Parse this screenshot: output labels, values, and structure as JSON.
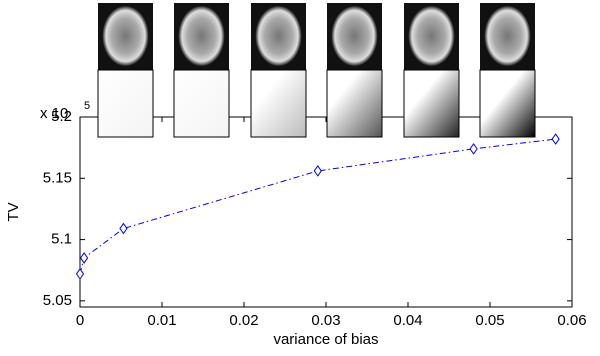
{
  "chart_data": {
    "type": "line",
    "x_label": "variance of bias",
    "y_label": "TV",
    "y_multiplier": "x 10",
    "y_exponent": "5",
    "x": [
      0,
      0.0005,
      0.0053,
      0.029,
      0.048,
      0.058
    ],
    "values": [
      5.072,
      5.085,
      5.109,
      5.156,
      5.174,
      5.182
    ],
    "color": "#0000ff",
    "xlim": [
      0,
      0.06
    ],
    "xticks": [
      0,
      0.01,
      0.02,
      0.03,
      0.04,
      0.05,
      0.06
    ],
    "ylim": [
      5.045,
      5.2
    ],
    "yticks": [
      5.05,
      5.1,
      5.15,
      5.2
    ]
  }
}
